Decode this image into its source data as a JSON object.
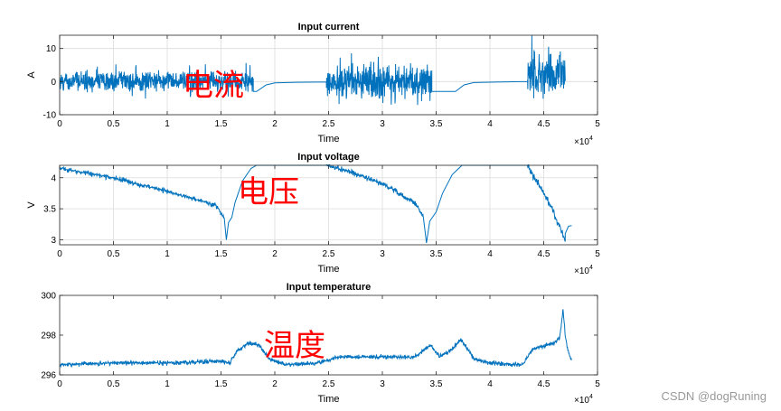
{
  "watermark": "CSDN @dogRuning",
  "colors": {
    "line": "#0072bd",
    "annotation": "#ff0000",
    "grid": "#dcdcdc",
    "axis": "#262626"
  },
  "chart_data": [
    {
      "type": "line",
      "title": "Input current",
      "xlabel": "Time",
      "ylabel": "A",
      "xlim": [
        0,
        50000
      ],
      "ylim": [
        -10,
        14
      ],
      "x_ticks": [
        0,
        5000,
        10000,
        15000,
        20000,
        25000,
        30000,
        35000,
        40000,
        45000,
        50000
      ],
      "x_tick_labels": [
        "0",
        "0.5",
        "1",
        "1.5",
        "2",
        "2.5",
        "3",
        "3.5",
        "4",
        "4.5",
        "5"
      ],
      "y_ticks": [
        -10,
        0,
        10
      ],
      "y_tick_labels": [
        "-10",
        "0",
        "10"
      ],
      "x_exponent": {
        "base": "×10",
        "power": "4"
      },
      "grid": true,
      "annotation": "电流",
      "series": [
        {
          "segments": [
            {
              "kind": "noise",
              "x0": 0,
              "x1": 18000,
              "center": 0,
              "amp": 3.5,
              "spike": 6
            },
            {
              "kind": "points",
              "pts": [
                [
                  18000,
                  -3
                ],
                [
                  18300,
                  -3
                ],
                [
                  19200,
                  -1
                ],
                [
                  20000,
                  -0.4
                ],
                [
                  22000,
                  -0.2
                ],
                [
                  24800,
                  -0.1
                ]
              ]
            },
            {
              "kind": "noise",
              "x0": 24800,
              "x1": 34600,
              "center": 0,
              "amp": 6,
              "spike": 9
            },
            {
              "kind": "points",
              "pts": [
                [
                  34600,
                  -3
                ],
                [
                  36800,
                  -3
                ],
                [
                  37600,
                  -1
                ],
                [
                  38500,
                  -0.3
                ],
                [
                  41000,
                  -0.1
                ],
                [
                  43500,
                  0
                ]
              ]
            },
            {
              "kind": "noise",
              "x0": 43500,
              "x1": 47000,
              "center": 2,
              "amp": 8,
              "spike": 12
            }
          ]
        }
      ]
    },
    {
      "type": "line",
      "title": "Input voltage",
      "xlabel": "Time",
      "ylabel": "V",
      "xlim": [
        0,
        50000
      ],
      "ylim": [
        2.92,
        4.2
      ],
      "x_ticks": [
        0,
        5000,
        10000,
        15000,
        20000,
        25000,
        30000,
        35000,
        40000,
        45000,
        50000
      ],
      "x_tick_labels": [
        "0",
        "0.5",
        "1",
        "1.5",
        "2",
        "2.5",
        "3",
        "3.5",
        "4",
        "4.5",
        "5"
      ],
      "y_ticks": [
        3,
        3.5,
        4
      ],
      "y_tick_labels": [
        "3",
        "3.5",
        "4"
      ],
      "x_exponent": {
        "base": "×10",
        "power": "4"
      },
      "grid": true,
      "annotation": "电压",
      "series": [
        {
          "segments": [
            {
              "kind": "trend",
              "pts": [
                [
                  0,
                  4.15
                ],
                [
                  5000,
                  4.0
                ],
                [
                  10000,
                  3.78
                ],
                [
                  14500,
                  3.56
                ],
                [
                  15300,
                  3.35
                ]
              ],
              "amp": 0.05
            },
            {
              "kind": "points",
              "pts": [
                [
                  15300,
                  3.35
                ],
                [
                  15500,
                  3.0
                ],
                [
                  15700,
                  3.28
                ],
                [
                  16000,
                  3.36
                ],
                [
                  16300,
                  3.6
                ],
                [
                  17000,
                  3.95
                ],
                [
                  17800,
                  4.15
                ],
                [
                  18300,
                  4.2
                ],
                [
                  24800,
                  4.2
                ]
              ]
            },
            {
              "kind": "trend",
              "pts": [
                [
                  24800,
                  4.2
                ],
                [
                  27000,
                  4.1
                ],
                [
                  30000,
                  3.9
                ],
                [
                  33000,
                  3.6
                ],
                [
                  33800,
                  3.38
                ]
              ],
              "amp": 0.06
            },
            {
              "kind": "points",
              "pts": [
                [
                  33800,
                  3.38
                ],
                [
                  34100,
                  2.95
                ],
                [
                  34400,
                  3.3
                ],
                [
                  35000,
                  3.45
                ],
                [
                  35600,
                  3.75
                ],
                [
                  36500,
                  4.05
                ],
                [
                  37400,
                  4.2
                ],
                [
                  43500,
                  4.2
                ]
              ]
            },
            {
              "kind": "trend",
              "pts": [
                [
                  43500,
                  4.18
                ],
                [
                  44500,
                  3.9
                ],
                [
                  45500,
                  3.6
                ],
                [
                  46500,
                  3.2
                ],
                [
                  47000,
                  2.97
                ]
              ],
              "amp": 0.08
            },
            {
              "kind": "points",
              "pts": [
                [
                  47000,
                  3.1
                ],
                [
                  47300,
                  3.22
                ],
                [
                  47600,
                  3.23
                ]
              ]
            }
          ]
        }
      ]
    },
    {
      "type": "line",
      "title": "Input temperature",
      "xlabel": "Time",
      "ylabel": "",
      "xlim": [
        0,
        50000
      ],
      "ylim": [
        296,
        300
      ],
      "x_ticks": [
        0,
        5000,
        10000,
        15000,
        20000,
        25000,
        30000,
        35000,
        40000,
        45000,
        50000
      ],
      "x_tick_labels": [
        "0",
        "0.5",
        "1",
        "1.5",
        "2",
        "2.5",
        "3",
        "3.5",
        "4",
        "4.5",
        "5"
      ],
      "y_ticks": [
        296,
        298,
        300
      ],
      "y_tick_labels": [
        "296",
        "298",
        "300"
      ],
      "x_exponent": {
        "base": "×10",
        "power": "4"
      },
      "grid": false,
      "annotation": "温度",
      "series": [
        {
          "segments": [
            {
              "kind": "trend",
              "pts": [
                [
                  0,
                  296.5
                ],
                [
                  5000,
                  296.6
                ],
                [
                  10000,
                  296.6
                ],
                [
                  15000,
                  296.7
                ],
                [
                  15800,
                  296.6
                ],
                [
                  16500,
                  297.2
                ],
                [
                  17500,
                  297.6
                ],
                [
                  18500,
                  297.5
                ],
                [
                  19500,
                  296.8
                ],
                [
                  21000,
                  296.5
                ],
                [
                  24000,
                  296.6
                ],
                [
                  26000,
                  296.9
                ],
                [
                  30000,
                  296.9
                ],
                [
                  33000,
                  296.9
                ],
                [
                  34500,
                  297.5
                ],
                [
                  35300,
                  296.9
                ],
                [
                  36500,
                  297.3
                ],
                [
                  37300,
                  297.8
                ],
                [
                  38500,
                  296.8
                ],
                [
                  40000,
                  296.6
                ],
                [
                  43000,
                  296.5
                ],
                [
                  44000,
                  297.3
                ],
                [
                  46000,
                  297.6
                ],
                [
                  46500,
                  297.9
                ],
                [
                  46800,
                  299.3
                ],
                [
                  47000,
                  298.0
                ],
                [
                  47300,
                  297.1
                ],
                [
                  47600,
                  296.7
                ]
              ],
              "amp": 0.15
            }
          ]
        }
      ]
    }
  ]
}
